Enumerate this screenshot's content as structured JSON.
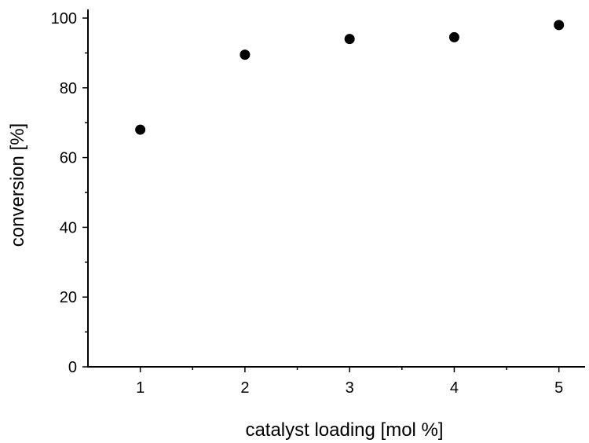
{
  "chart_data": {
    "type": "scatter",
    "title": "",
    "xlabel": "catalyst loading [mol %]",
    "ylabel": "conversion [%]",
    "xlim": [
      0.5,
      5.25
    ],
    "ylim": [
      0,
      100
    ],
    "xticks": [
      1,
      2,
      3,
      4,
      5
    ],
    "yticks": [
      0,
      20,
      40,
      60,
      80,
      100
    ],
    "grid": false,
    "series": [
      {
        "x": [
          1,
          2,
          3,
          4,
          5
        ],
        "y": [
          68,
          89.5,
          94,
          94.5,
          98
        ]
      }
    ]
  }
}
